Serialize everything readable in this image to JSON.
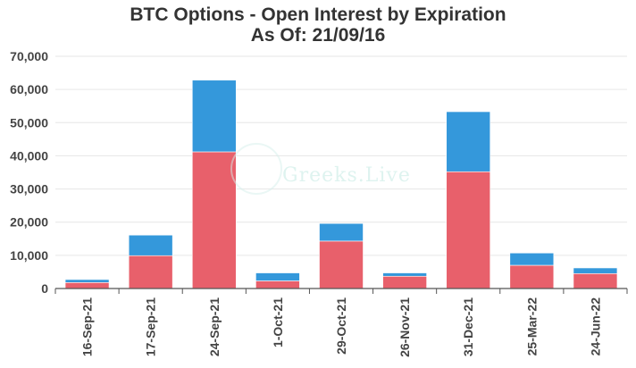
{
  "chart_data": {
    "type": "bar",
    "stacked": true,
    "title": "BTC Options - Open Interest by Expiration",
    "subtitle": "As Of: 21/09/16",
    "watermark": "Greeks.Live",
    "categories": [
      "16-Sep-21",
      "17-Sep-21",
      "24-Sep-21",
      "1-Oct-21",
      "29-Oct-21",
      "26-Nov-21",
      "31-Dec-21",
      "25-Mar-22",
      "24-Jun-22"
    ],
    "series": [
      {
        "color": "#e8606b",
        "values": [
          1800,
          9900,
          41200,
          2300,
          14300,
          3700,
          35200,
          7000,
          4500
        ]
      },
      {
        "color": "#3498db",
        "values": [
          900,
          6200,
          21600,
          2400,
          5300,
          1000,
          18100,
          3700,
          1700
        ]
      }
    ],
    "ylim": [
      0,
      70000
    ],
    "yticks": [
      "0",
      "10,000",
      "20,000",
      "30,000",
      "40,000",
      "50,000",
      "60,000",
      "70,000"
    ],
    "grid": true,
    "xlabel": "",
    "ylabel": ""
  }
}
